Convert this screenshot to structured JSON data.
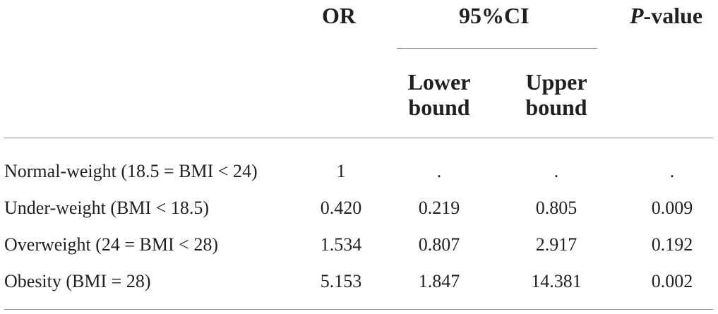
{
  "header": {
    "or": "OR",
    "ci": "95%CI",
    "lower": [
      "Lower",
      "bound"
    ],
    "upper": [
      "Upper",
      "bound"
    ],
    "p_italic": "P",
    "p_rest": "-value"
  },
  "rows": [
    {
      "label": "Normal-weight (18.5 = BMI < 24)",
      "or": "1",
      "lower": ".",
      "upper": ".",
      "p": "."
    },
    {
      "label": "Under-weight (BMI < 18.5)",
      "or": "0.420",
      "lower": "0.219",
      "upper": "0.805",
      "p": "0.009"
    },
    {
      "label": "Overweight (24 = BMI < 28)",
      "or": "1.534",
      "lower": "0.807",
      "upper": "2.917",
      "p": "0.192"
    },
    {
      "label": "Obesity (BMI = 28)",
      "or": "5.153",
      "lower": "1.847",
      "upper": "14.381",
      "p": "0.002"
    }
  ]
}
